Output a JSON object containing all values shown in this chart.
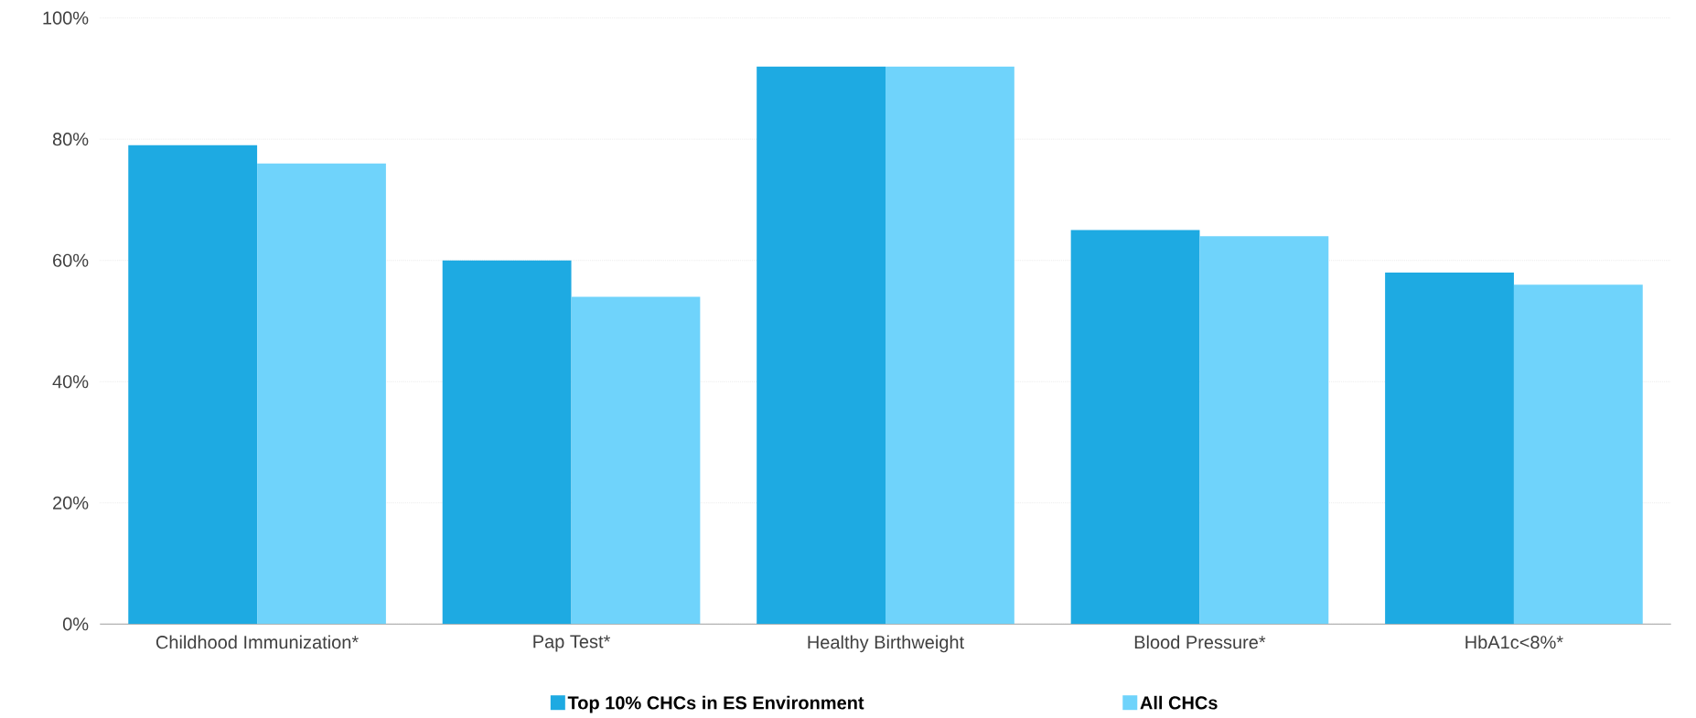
{
  "chart_data": {
    "type": "bar",
    "categories": [
      "Childhood Immunization*",
      "Pap Test*",
      "Healthy Birthweight",
      "Blood Pressure*",
      "HbA1c<8%*"
    ],
    "series": [
      {
        "name": "Top 10% CHCs in ES Environment",
        "color": "#1eaae2",
        "values": [
          79,
          60,
          92,
          65,
          58
        ]
      },
      {
        "name": "All CHCs",
        "color": "#6fd3fb",
        "values": [
          76,
          54,
          92,
          64,
          56
        ]
      }
    ],
    "ylim": [
      0,
      100
    ],
    "yticks": [
      {
        "value": 0,
        "label": "0%"
      },
      {
        "value": 20,
        "label": "20%"
      },
      {
        "value": 40,
        "label": "40%"
      },
      {
        "value": 60,
        "label": "60%"
      },
      {
        "value": 80,
        "label": "80%"
      },
      {
        "value": 100,
        "label": "100%"
      }
    ],
    "grid": "y",
    "legend": "bottom"
  }
}
